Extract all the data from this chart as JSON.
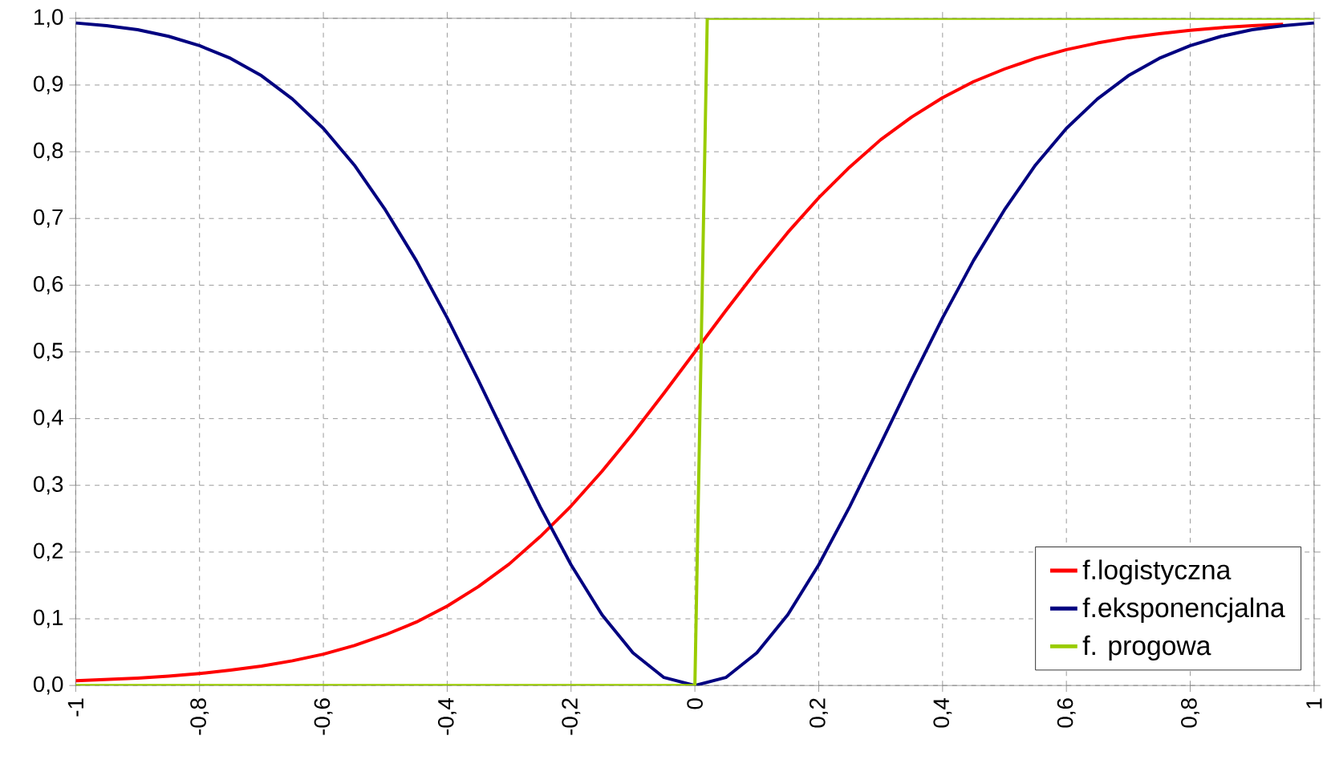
{
  "chart_data": {
    "type": "line",
    "x": [
      -1,
      -0.95,
      -0.9,
      -0.85,
      -0.8,
      -0.75,
      -0.7,
      -0.65,
      -0.6,
      -0.55,
      -0.5,
      -0.45,
      -0.4,
      -0.35,
      -0.3,
      -0.25,
      -0.2,
      -0.15,
      -0.1,
      -0.05,
      0,
      0.05,
      0.1,
      0.15,
      0.2,
      0.25,
      0.3,
      0.35,
      0.4,
      0.45,
      0.5,
      0.55,
      0.6,
      0.65,
      0.7,
      0.75,
      0.8,
      0.85,
      0.9,
      0.95,
      1
    ],
    "series": [
      {
        "name": "f.logistyczna",
        "color": "#ff0000",
        "values": [
          0.007,
          0.009,
          0.011,
          0.014,
          0.018,
          0.023,
          0.029,
          0.037,
          0.047,
          0.06,
          0.076,
          0.095,
          0.119,
          0.148,
          0.182,
          0.223,
          0.269,
          0.321,
          0.378,
          0.438,
          0.5,
          0.562,
          0.622,
          0.679,
          0.731,
          0.777,
          0.818,
          0.852,
          0.881,
          0.905,
          0.924,
          0.94,
          0.953,
          0.963,
          0.971,
          0.977,
          0.982,
          0.986,
          0.989,
          0.991,
          null
        ]
      },
      {
        "name": "f.eksponencjalna",
        "color": "#000080",
        "values": [
          0.993,
          0.989,
          0.983,
          0.973,
          0.959,
          0.94,
          0.914,
          0.879,
          0.835,
          0.78,
          0.713,
          0.637,
          0.551,
          0.458,
          0.362,
          0.268,
          0.181,
          0.106,
          0.049,
          0.012,
          0,
          0.012,
          0.049,
          0.106,
          0.181,
          0.268,
          0.362,
          0.458,
          0.551,
          0.637,
          0.713,
          0.78,
          0.835,
          0.879,
          0.914,
          0.94,
          0.959,
          0.973,
          0.983,
          0.989,
          0.993
        ]
      },
      {
        "name": "f. progowa",
        "color": "#99cc00",
        "x": [
          -1,
          0,
          0.02,
          1
        ],
        "values": [
          0,
          0,
          1,
          1
        ]
      }
    ],
    "xlim": [
      -1,
      1
    ],
    "xticks": [
      {
        "value": -1,
        "label": "-1"
      },
      {
        "value": -0.8,
        "label": "-0,8"
      },
      {
        "value": -0.6,
        "label": "-0,6"
      },
      {
        "value": -0.4,
        "label": "-0,4"
      },
      {
        "value": -0.2,
        "label": "-0,2"
      },
      {
        "value": 0,
        "label": "0"
      },
      {
        "value": 0.2,
        "label": "0,2"
      },
      {
        "value": 0.4,
        "label": "0,4"
      },
      {
        "value": 0.6,
        "label": "0,6"
      },
      {
        "value": 0.8,
        "label": "0,8"
      },
      {
        "value": 1,
        "label": "1"
      }
    ],
    "ylim": [
      0,
      1
    ],
    "yticks": [
      {
        "value": 0,
        "label": "0,0"
      },
      {
        "value": 0.1,
        "label": "0,1"
      },
      {
        "value": 0.2,
        "label": "0,2"
      },
      {
        "value": 0.3,
        "label": "0,3"
      },
      {
        "value": 0.4,
        "label": "0,4"
      },
      {
        "value": 0.5,
        "label": "0,5"
      },
      {
        "value": 0.6,
        "label": "0,6"
      },
      {
        "value": 0.7,
        "label": "0,7"
      },
      {
        "value": 0.8,
        "label": "0,8"
      },
      {
        "value": 0.9,
        "label": "0,9"
      },
      {
        "value": 1,
        "label": "1,0"
      }
    ],
    "grid": true,
    "legend": "bottom right",
    "marker": "none",
    "line_style": "solid"
  }
}
